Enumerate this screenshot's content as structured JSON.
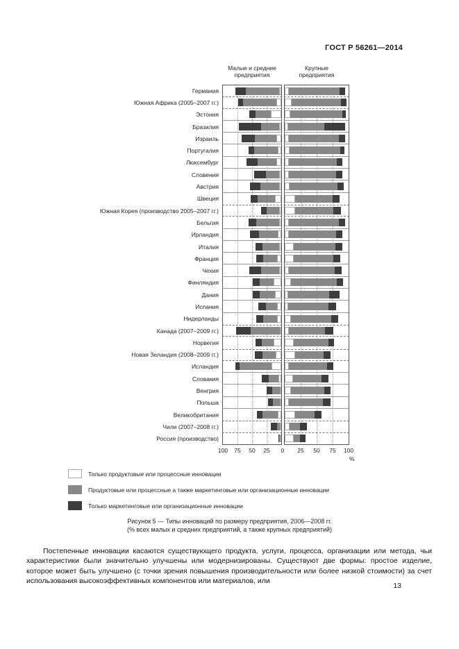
{
  "page": {
    "header": "ГОСТ Р 56261—2014",
    "page_number": "13",
    "caption_line1": "Рисунок 5 — Типы инноваций по размеру предприятия, 2006—2008 гг.",
    "caption_line2": "(% всех малых и средних предприятий, а также крупных предприятий)",
    "paragraph": "Постепенные инновации касаются существующего продукта, услуги, процесса, организации или метода, чьи характеристики были значительно улучшены или модернизированы. Существуют две формы: простое изделие, которое может быть улучшено (с точки зрения повышения производительности или более низкой стоимости) за счет использования высокоэффективных компонентов или материалов, или"
  },
  "legend": {
    "items": [
      {
        "label": "Только продуктовые или процессные инновации",
        "color": "#ffffff",
        "border": "#a8a8a8"
      },
      {
        "label": "Продуктовые или процессные а также маркетинговые или организационные инновации",
        "color": "#878787",
        "border": "#878787"
      },
      {
        "label": "Только маркетинговые или организационные инновации",
        "color": "#3d3d3d",
        "border": "#3d3d3d"
      }
    ]
  },
  "chart_data": {
    "type": "bar",
    "subtype": "back-to-back horizontal stacked bars",
    "title": "Типы инноваций по размеру предприятия, 2006—2008 гг.",
    "panels": [
      {
        "title_line1": "Малые и средние",
        "title_line2": "предприятия"
      },
      {
        "title_line1": "Крупные",
        "title_line2": "предприятия"
      }
    ],
    "axis": {
      "range": [
        0,
        100
      ],
      "unit": "%",
      "left_ticks": [
        "100",
        "75",
        "50",
        "25"
      ],
      "zero_label": "0",
      "right_ticks": [
        "25",
        "50",
        "75",
        "100"
      ],
      "grid": "dotted verticals at 25/50/75"
    },
    "series_order_from_axis": [
      "product_only_white",
      "product_and_marketing_gray",
      "marketing_only_dark"
    ],
    "colors": {
      "product_only": "#ffffff",
      "product_and_marketing": "#878787",
      "marketing_only": "#3d3d3d"
    },
    "rows": [
      {
        "country": "Германия",
        "sme": [
          4,
          57,
          18
        ],
        "large": [
          6,
          80,
          9
        ]
      },
      {
        "country": "Южная Африка (2005–2007 гг.)",
        "sme": [
          8,
          57,
          9
        ],
        "large": [
          11,
          77,
          9
        ],
        "dashed": true
      },
      {
        "country": "Эстония",
        "sme": [
          18,
          26,
          11
        ],
        "large": [
          9,
          81,
          6
        ]
      },
      {
        "country": "Бразилия",
        "sme": [
          4,
          30,
          39
        ],
        "large": [
          5,
          57,
          33
        ]
      },
      {
        "country": "Израиль",
        "sme": [
          8,
          37,
          23
        ],
        "large": [
          6,
          79,
          10
        ]
      },
      {
        "country": "Португалия",
        "sme": [
          6,
          40,
          10
        ],
        "large": [
          8,
          79,
          7
        ]
      },
      {
        "country": "Люксембург",
        "sme": [
          8,
          33,
          19
        ],
        "large": [
          6,
          75,
          9
        ]
      },
      {
        "country": "Словения",
        "sme": [
          4,
          22,
          21
        ],
        "large": [
          6,
          74,
          10
        ]
      },
      {
        "country": "Австрия",
        "sme": [
          4,
          32,
          17
        ],
        "large": [
          8,
          75,
          9
        ]
      },
      {
        "country": "Швеция",
        "sme": [
          11,
          30,
          11
        ],
        "large": [
          16,
          59,
          11
        ]
      },
      {
        "country": "Южная Корея (производство 2005–2007 гг.)",
        "sme": [
          4,
          21,
          9
        ],
        "large": [
          16,
          60,
          12
        ],
        "dashed": true
      },
      {
        "country": "Бельгия",
        "sme": [
          4,
          39,
          13
        ],
        "large": [
          6,
          79,
          10
        ]
      },
      {
        "country": "Ирландия",
        "sme": [
          6,
          32,
          16
        ],
        "large": [
          6,
          74,
          10
        ]
      },
      {
        "country": "Италия",
        "sme": [
          4,
          28,
          12
        ],
        "large": [
          14,
          65,
          11
        ]
      },
      {
        "country": "Франция",
        "sme": [
          7,
          24,
          12
        ],
        "large": [
          14,
          62,
          11
        ]
      },
      {
        "country": "Чехия",
        "sme": [
          4,
          30,
          21
        ],
        "large": [
          7,
          71,
          11
        ]
      },
      {
        "country": "Финляндия",
        "sme": [
          13,
          24,
          12
        ],
        "large": [
          10,
          72,
          9
        ]
      },
      {
        "country": "Дания",
        "sme": [
          11,
          26,
          12
        ],
        "large": [
          5,
          65,
          16
        ]
      },
      {
        "country": "Испания",
        "sme": [
          7,
          19,
          13
        ],
        "large": [
          5,
          64,
          11
        ]
      },
      {
        "country": "Нидерланды",
        "sme": [
          7,
          24,
          12
        ],
        "large": [
          10,
          63,
          11
        ]
      },
      {
        "country": "Канада (2007–2009 гг.)",
        "sme": [
          3,
          49,
          25
        ],
        "large": [
          7,
          56,
          13
        ],
        "dashed": true
      },
      {
        "country": "Норвегия",
        "sme": [
          13,
          21,
          10
        ],
        "large": [
          14,
          54,
          9
        ]
      },
      {
        "country": "Новая Зеландия (2008–2009 гг.)",
        "sme": [
          9,
          23,
          13
        ],
        "large": [
          16,
          45,
          11
        ],
        "dashed": true
      },
      {
        "country": "Исландия",
        "sme": [
          17,
          54,
          8
        ],
        "large": [
          6,
          60,
          10
        ]
      },
      {
        "country": "Словакия",
        "sme": [
          5,
          17,
          11
        ],
        "large": [
          13,
          45,
          11
        ]
      },
      {
        "country": "Венгрия",
        "sme": [
          2,
          13,
          10
        ],
        "large": [
          10,
          52,
          10
        ]
      },
      {
        "country": "Польша",
        "sme": [
          3,
          11,
          9
        ],
        "large": [
          7,
          53,
          12
        ]
      },
      {
        "country": "Великобритания",
        "sme": [
          6,
          26,
          10
        ],
        "large": [
          16,
          31,
          11
        ]
      },
      {
        "country": "Чили (2007–2008 гг.)",
        "sme": [
          2,
          5,
          10
        ],
        "large": [
          8,
          16,
          11
        ],
        "dashed": true
      },
      {
        "country": "Россия (производство)",
        "sme": [
          1,
          1,
          2
        ],
        "large": [
          14,
          10,
          9
        ],
        "dashed": true
      }
    ]
  }
}
